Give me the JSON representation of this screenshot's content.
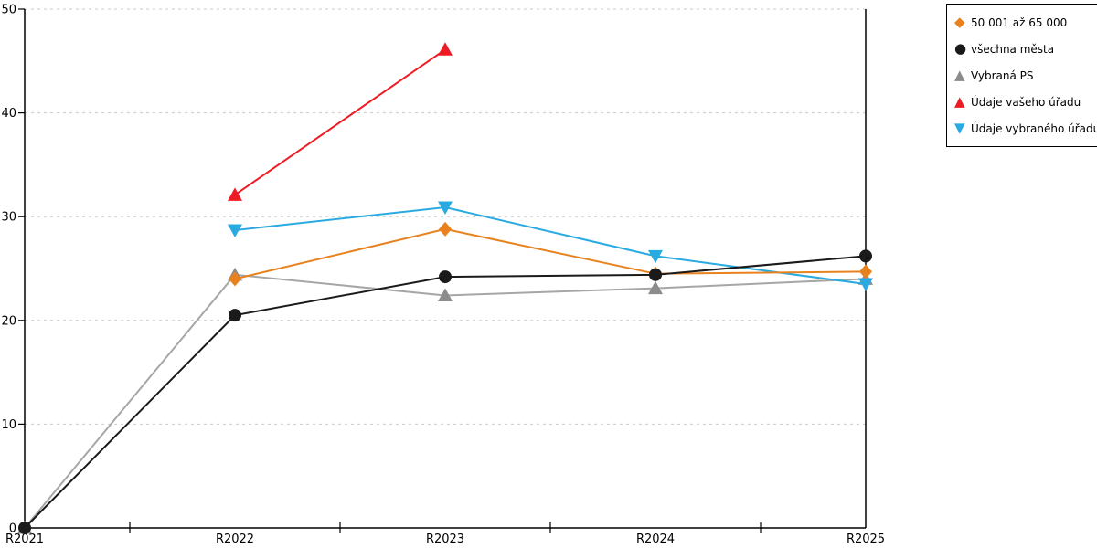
{
  "chart_data": {
    "type": "line",
    "title": "",
    "xlabel": "",
    "ylabel": "",
    "categories": [
      "R2021",
      "R2022",
      "R2023",
      "R2024",
      "R2025"
    ],
    "yticks": [
      0,
      10,
      20,
      30,
      40,
      50
    ],
    "ylim": [
      0,
      50
    ],
    "grid": "horizontal dashed",
    "legend_position": "top-right outside",
    "series": [
      {
        "name": "50 001 až 65 000",
        "marker": "diamond",
        "color": "#e8821e",
        "line_color": "#e8821e",
        "values": [
          null,
          24.0,
          28.8,
          24.5,
          24.7
        ]
      },
      {
        "name": "všechna města",
        "marker": "circle",
        "color": "#1a1a1a",
        "line_color": "#1a1a1a",
        "values": [
          0,
          20.5,
          24.2,
          24.4,
          26.2
        ]
      },
      {
        "name": "Vybraná PS",
        "marker": "triangle-up",
        "color": "#8c8c8c",
        "line_color": "#a6a6a6",
        "values": [
          0,
          24.4,
          22.4,
          23.1,
          24.0
        ]
      },
      {
        "name": "Údaje vašeho úřadu",
        "marker": "triangle-up",
        "color": "#ed1c24",
        "line_color": "#ed1c24",
        "values": [
          null,
          32.1,
          46.1,
          null,
          null
        ]
      },
      {
        "name": "Údaje vybraného úřadu",
        "marker": "triangle-down",
        "color": "#29abe2",
        "line_color": "#29abe2",
        "values": [
          null,
          28.7,
          30.9,
          26.2,
          23.5
        ]
      }
    ]
  }
}
